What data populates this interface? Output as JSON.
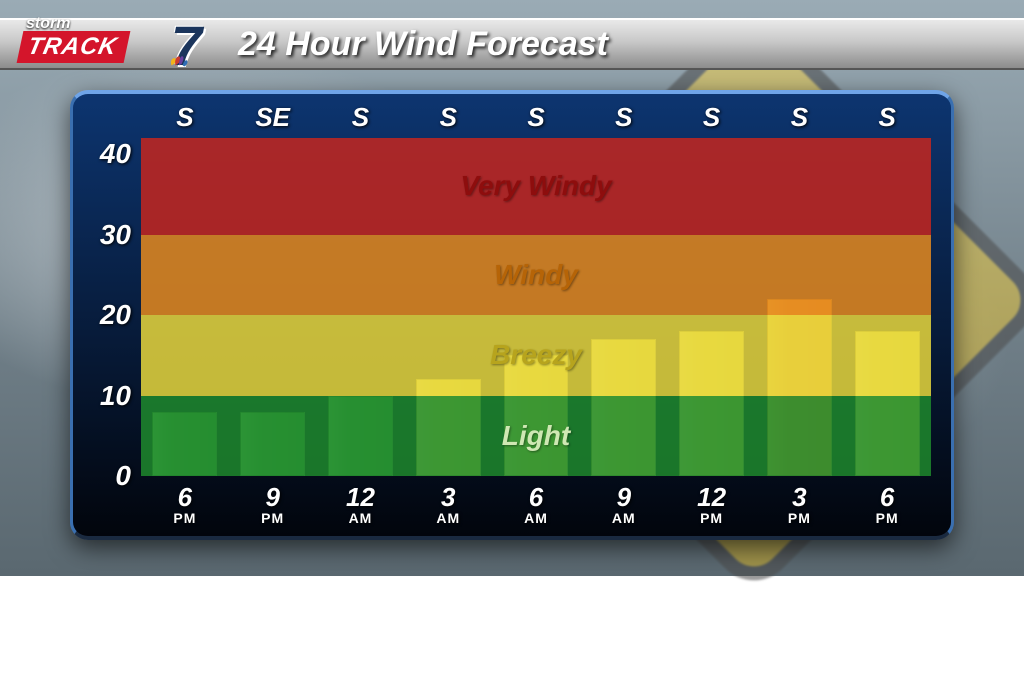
{
  "logo": {
    "storm": "storm",
    "track": "TRACK",
    "seven": "7"
  },
  "title": "24 Hour Wind Forecast",
  "chart": {
    "type": "bar",
    "ylim": [
      0,
      42
    ],
    "yticks": [
      0,
      10,
      20,
      30,
      40
    ],
    "bands": [
      {
        "from": 0,
        "to": 10,
        "color": "#1f8a2d",
        "label": "Light",
        "label_color": "#cfe8b3"
      },
      {
        "from": 10,
        "to": 20,
        "color": "#e7d73c",
        "label": "Breezy",
        "label_color": "#b7a41d"
      },
      {
        "from": 20,
        "to": 30,
        "color": "#e58a1f",
        "label": "Windy",
        "label_color": "#b66407"
      },
      {
        "from": 30,
        "to": 42,
        "color": "#c6261f",
        "label": "Very Windy",
        "label_color": "#8e0d0d"
      }
    ],
    "directions": [
      "S",
      "SE",
      "S",
      "S",
      "S",
      "S",
      "S",
      "S",
      "S"
    ],
    "times": [
      {
        "h": "6",
        "ap": "PM"
      },
      {
        "h": "9",
        "ap": "PM"
      },
      {
        "h": "12",
        "ap": "AM"
      },
      {
        "h": "3",
        "ap": "AM"
      },
      {
        "h": "6",
        "ap": "AM"
      },
      {
        "h": "9",
        "ap": "AM"
      },
      {
        "h": "12",
        "ap": "PM"
      },
      {
        "h": "3",
        "ap": "PM"
      },
      {
        "h": "6",
        "ap": "PM"
      }
    ],
    "values": [
      8,
      8,
      10,
      12,
      15,
      17,
      18,
      22,
      18
    ],
    "bar_colors": [
      "#59b24d",
      "#59b24d",
      "#59b24d",
      "#e7e257",
      "#e7e257",
      "#e7e257",
      "#e7e257",
      "#eba43a",
      "#e7e257"
    ],
    "panel_bg_top": "#0d3570",
    "panel_bg_bottom": "#02050c"
  }
}
